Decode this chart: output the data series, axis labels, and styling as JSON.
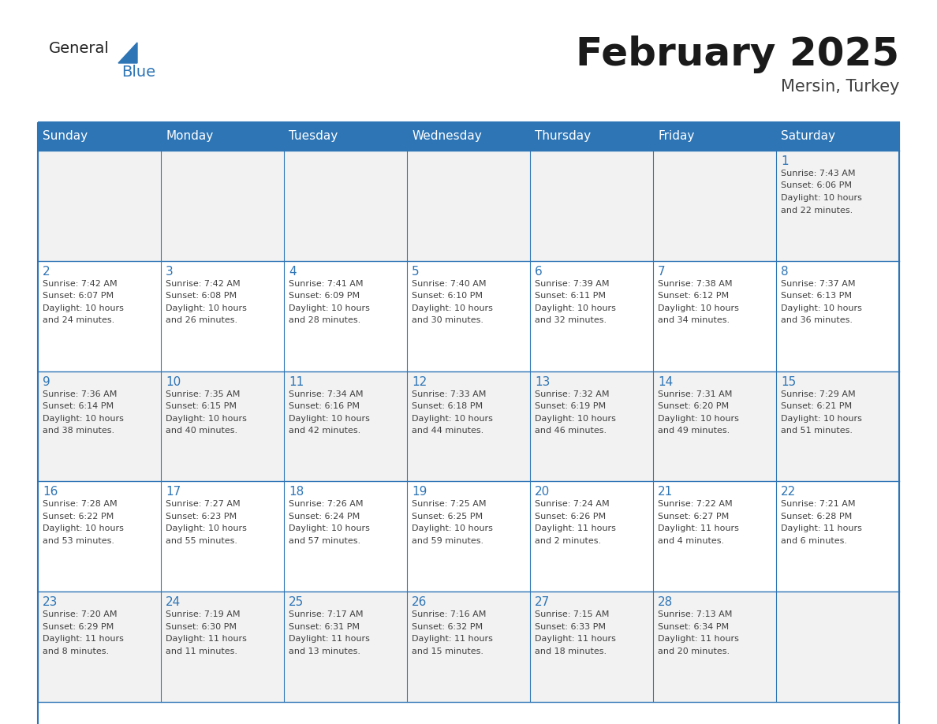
{
  "title": "February 2025",
  "subtitle": "Mersin, Turkey",
  "days_of_week": [
    "Sunday",
    "Monday",
    "Tuesday",
    "Wednesday",
    "Thursday",
    "Friday",
    "Saturday"
  ],
  "header_bg": "#2E75B6",
  "header_text": "#FFFFFF",
  "cell_bg_even": "#F2F2F2",
  "cell_bg_odd": "#FFFFFF",
  "border_color": "#2E75B6",
  "day_num_color": "#2E75B6",
  "detail_color": "#404040",
  "title_color": "#1a1a1a",
  "subtitle_color": "#404040",
  "logo_general_color": "#222222",
  "logo_blue_color": "#2E75B6",
  "calendar": [
    [
      {
        "day": null,
        "text": ""
      },
      {
        "day": null,
        "text": ""
      },
      {
        "day": null,
        "text": ""
      },
      {
        "day": null,
        "text": ""
      },
      {
        "day": null,
        "text": ""
      },
      {
        "day": null,
        "text": ""
      },
      {
        "day": 1,
        "text": "Sunrise: 7:43 AM\nSunset: 6:06 PM\nDaylight: 10 hours\nand 22 minutes."
      }
    ],
    [
      {
        "day": 2,
        "text": "Sunrise: 7:42 AM\nSunset: 6:07 PM\nDaylight: 10 hours\nand 24 minutes."
      },
      {
        "day": 3,
        "text": "Sunrise: 7:42 AM\nSunset: 6:08 PM\nDaylight: 10 hours\nand 26 minutes."
      },
      {
        "day": 4,
        "text": "Sunrise: 7:41 AM\nSunset: 6:09 PM\nDaylight: 10 hours\nand 28 minutes."
      },
      {
        "day": 5,
        "text": "Sunrise: 7:40 AM\nSunset: 6:10 PM\nDaylight: 10 hours\nand 30 minutes."
      },
      {
        "day": 6,
        "text": "Sunrise: 7:39 AM\nSunset: 6:11 PM\nDaylight: 10 hours\nand 32 minutes."
      },
      {
        "day": 7,
        "text": "Sunrise: 7:38 AM\nSunset: 6:12 PM\nDaylight: 10 hours\nand 34 minutes."
      },
      {
        "day": 8,
        "text": "Sunrise: 7:37 AM\nSunset: 6:13 PM\nDaylight: 10 hours\nand 36 minutes."
      }
    ],
    [
      {
        "day": 9,
        "text": "Sunrise: 7:36 AM\nSunset: 6:14 PM\nDaylight: 10 hours\nand 38 minutes."
      },
      {
        "day": 10,
        "text": "Sunrise: 7:35 AM\nSunset: 6:15 PM\nDaylight: 10 hours\nand 40 minutes."
      },
      {
        "day": 11,
        "text": "Sunrise: 7:34 AM\nSunset: 6:16 PM\nDaylight: 10 hours\nand 42 minutes."
      },
      {
        "day": 12,
        "text": "Sunrise: 7:33 AM\nSunset: 6:18 PM\nDaylight: 10 hours\nand 44 minutes."
      },
      {
        "day": 13,
        "text": "Sunrise: 7:32 AM\nSunset: 6:19 PM\nDaylight: 10 hours\nand 46 minutes."
      },
      {
        "day": 14,
        "text": "Sunrise: 7:31 AM\nSunset: 6:20 PM\nDaylight: 10 hours\nand 49 minutes."
      },
      {
        "day": 15,
        "text": "Sunrise: 7:29 AM\nSunset: 6:21 PM\nDaylight: 10 hours\nand 51 minutes."
      }
    ],
    [
      {
        "day": 16,
        "text": "Sunrise: 7:28 AM\nSunset: 6:22 PM\nDaylight: 10 hours\nand 53 minutes."
      },
      {
        "day": 17,
        "text": "Sunrise: 7:27 AM\nSunset: 6:23 PM\nDaylight: 10 hours\nand 55 minutes."
      },
      {
        "day": 18,
        "text": "Sunrise: 7:26 AM\nSunset: 6:24 PM\nDaylight: 10 hours\nand 57 minutes."
      },
      {
        "day": 19,
        "text": "Sunrise: 7:25 AM\nSunset: 6:25 PM\nDaylight: 10 hours\nand 59 minutes."
      },
      {
        "day": 20,
        "text": "Sunrise: 7:24 AM\nSunset: 6:26 PM\nDaylight: 11 hours\nand 2 minutes."
      },
      {
        "day": 21,
        "text": "Sunrise: 7:22 AM\nSunset: 6:27 PM\nDaylight: 11 hours\nand 4 minutes."
      },
      {
        "day": 22,
        "text": "Sunrise: 7:21 AM\nSunset: 6:28 PM\nDaylight: 11 hours\nand 6 minutes."
      }
    ],
    [
      {
        "day": 23,
        "text": "Sunrise: 7:20 AM\nSunset: 6:29 PM\nDaylight: 11 hours\nand 8 minutes."
      },
      {
        "day": 24,
        "text": "Sunrise: 7:19 AM\nSunset: 6:30 PM\nDaylight: 11 hours\nand 11 minutes."
      },
      {
        "day": 25,
        "text": "Sunrise: 7:17 AM\nSunset: 6:31 PM\nDaylight: 11 hours\nand 13 minutes."
      },
      {
        "day": 26,
        "text": "Sunrise: 7:16 AM\nSunset: 6:32 PM\nDaylight: 11 hours\nand 15 minutes."
      },
      {
        "day": 27,
        "text": "Sunrise: 7:15 AM\nSunset: 6:33 PM\nDaylight: 11 hours\nand 18 minutes."
      },
      {
        "day": 28,
        "text": "Sunrise: 7:13 AM\nSunset: 6:34 PM\nDaylight: 11 hours\nand 20 minutes."
      },
      {
        "day": null,
        "text": ""
      }
    ]
  ]
}
